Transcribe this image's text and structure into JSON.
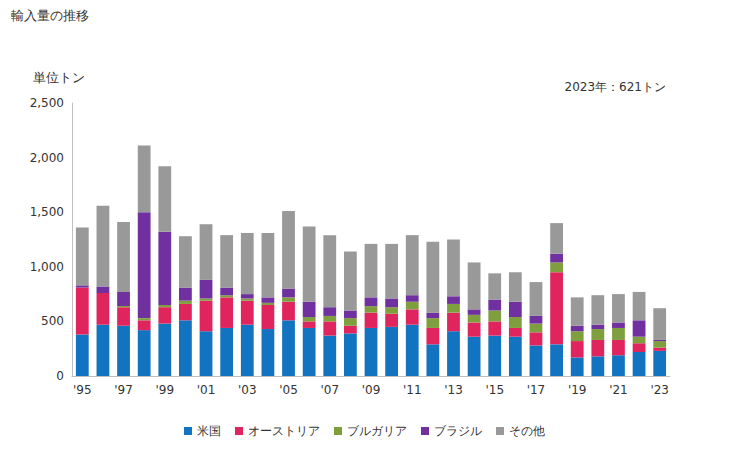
{
  "chart_data": {
    "type": "bar",
    "title": "輸入量の推移",
    "y_axis_label": "単位トン",
    "annotation": "2023年：621トン",
    "stacked": true,
    "grid": false,
    "legend": "bottom",
    "categories": [
      "'95",
      null,
      "'97",
      null,
      "'99",
      null,
      "'01",
      null,
      "'03",
      null,
      "'05",
      null,
      "'07",
      null,
      "'09",
      null,
      "'11",
      null,
      "'13",
      null,
      "'15",
      null,
      "'17",
      null,
      "'19",
      null,
      "'21",
      null,
      "'23"
    ],
    "series": [
      {
        "name": "米国",
        "color": "#1273c1",
        "values": [
          380,
          470,
          460,
          420,
          480,
          510,
          410,
          440,
          470,
          430,
          510,
          440,
          370,
          390,
          440,
          450,
          470,
          290,
          410,
          360,
          370,
          360,
          280,
          290,
          170,
          180,
          190,
          220,
          230
        ]
      },
      {
        "name": "オーストリア",
        "color": "#e0245e",
        "values": [
          430,
          290,
          170,
          90,
          150,
          150,
          280,
          280,
          220,
          220,
          170,
          60,
          130,
          70,
          140,
          120,
          140,
          150,
          170,
          130,
          130,
          80,
          120,
          660,
          150,
          150,
          140,
          80,
          30
        ]
      },
      {
        "name": "ブルガリア",
        "color": "#7f9f3f",
        "values": [
          0,
          0,
          10,
          20,
          20,
          30,
          20,
          20,
          20,
          20,
          40,
          40,
          50,
          70,
          60,
          60,
          70,
          90,
          80,
          70,
          100,
          100,
          80,
          90,
          90,
          100,
          110,
          60,
          60
        ]
      },
      {
        "name": "ブラジル",
        "color": "#7030a0",
        "values": [
          20,
          60,
          130,
          970,
          670,
          120,
          170,
          70,
          40,
          50,
          80,
          140,
          80,
          70,
          80,
          80,
          60,
          50,
          70,
          50,
          100,
          140,
          70,
          80,
          50,
          40,
          50,
          150,
          10
        ]
      },
      {
        "name": "その他",
        "color": "#999999",
        "values": [
          530,
          740,
          640,
          610,
          600,
          470,
          510,
          480,
          560,
          590,
          710,
          690,
          660,
          540,
          490,
          500,
          550,
          650,
          520,
          430,
          240,
          270,
          310,
          280,
          260,
          270,
          260,
          260,
          291
        ]
      }
    ],
    "ylim": [
      0,
      2500
    ],
    "yticks": [
      0,
      500,
      {
        "value": 1000,
        "label": "1,000"
      },
      {
        "value": 1500,
        "label": "1,500"
      },
      {
        "value": 2000,
        "label": "2,000"
      },
      {
        "value": 2500,
        "label": "2,500"
      }
    ]
  }
}
